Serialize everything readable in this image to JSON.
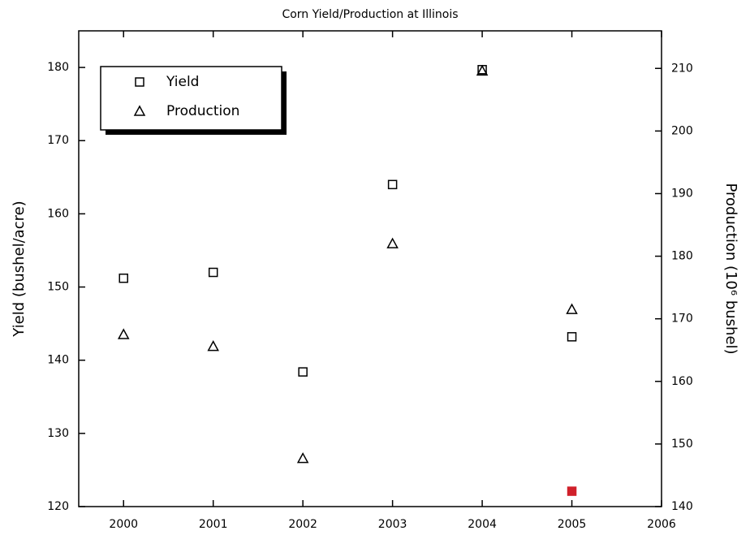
{
  "chart_data": {
    "type": "scatter",
    "title": "Corn Yield/Production at Illinois",
    "x_label": "",
    "y_label": "Yield (bushel/acre)",
    "y2_label": "Production (10⁶ bushel)",
    "x": [
      2000,
      2001,
      2002,
      2003,
      2004,
      2005
    ],
    "series": [
      {
        "name": "Yield",
        "marker": "square",
        "color": "#000000",
        "values": [
          151.2,
          152,
          138.4,
          164,
          179.7,
          143.2
        ]
      },
      {
        "name": "Production",
        "marker": "triangle",
        "color": "#000000",
        "axis": "y2",
        "values": [
          167.5,
          165.6,
          147.7,
          182,
          209.6,
          171.5
        ]
      },
      {
        "marker": "filled-square",
        "color": "#d0202a",
        "x": [
          2005
        ],
        "values": [
          122.1
        ]
      }
    ],
    "xlim": [
      1999.5,
      2006
    ],
    "xticks": [
      2000,
      2001,
      2002,
      2003,
      2004,
      2005,
      2006
    ],
    "ylim": [
      120,
      185
    ],
    "yticks": [
      120,
      130,
      140,
      150,
      160,
      170,
      180
    ],
    "y2lim": [
      140,
      216
    ],
    "y2ticks": [
      140,
      150,
      160,
      170,
      180,
      190,
      200,
      210
    ],
    "legend": "upper left"
  }
}
